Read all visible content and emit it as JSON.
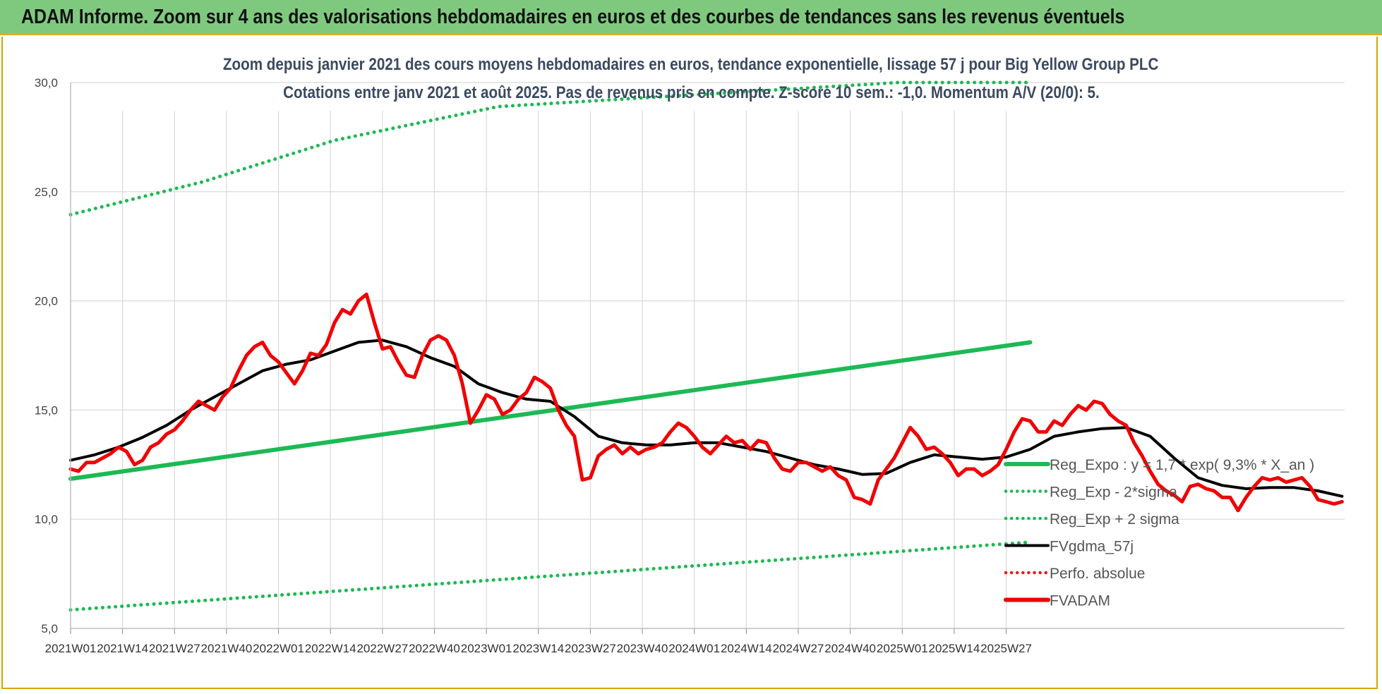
{
  "header": {
    "title": "ADAM Informe. Zoom sur 4 ans des valorisations hebdomadaires en euros et des courbes de tendances sans les revenus éventuels"
  },
  "chart_data": {
    "type": "line",
    "title_line1": "Zoom depuis janvier 2021 des cours moyens hebdomadaires en euros, tendance exponentielle, lissage 57 j pour Big Yellow Group PLC",
    "title_line2": "Cotations entre janv 2021 et août 2025.  Pas de revenus pris en compte. Z-score 10 sem.: -1,0. Momentum A/V (20/0): 5.",
    "ylim": [
      5,
      30
    ],
    "yticks": [
      "5,0",
      "10,0",
      "15,0",
      "20,0",
      "25,0",
      "30,0"
    ],
    "x_labels": [
      "2021W01",
      "2021W14",
      "2021W27",
      "2021W40",
      "2022W01",
      "2022W14",
      "2022W27",
      "2022W40",
      "2023W01",
      "2023W14",
      "2023W27",
      "2023W40",
      "2024W01",
      "2024W14",
      "2024W27",
      "2024W40",
      "2025W01",
      "2025W14",
      "2025W27"
    ],
    "n_weeks": 240,
    "legend_position": "right",
    "series": [
      {
        "name": "Reg_Expo : y = 1,7 * exp( 9,3% *  X_an )",
        "color": "#1db954",
        "style": "solid",
        "points": [
          [
            0,
            11.85
          ],
          [
            240,
            18.1
          ]
        ]
      },
      {
        "name": "Reg_Exp - 2*sigma",
        "color": "#1db954",
        "style": "dotted",
        "points": [
          [
            0,
            5.85
          ],
          [
            240,
            8.95
          ]
        ]
      },
      {
        "name": "Reg_Exp + 2 sigma",
        "color": "#1db954",
        "style": "dotted",
        "points": [
          [
            0,
            23.95
          ],
          [
            33,
            25.45
          ],
          [
            66,
            27.35
          ],
          [
            107,
            28.9
          ],
          [
            207,
            30.0
          ],
          [
            240,
            30.0
          ]
        ]
      },
      {
        "name": "FVgdma_57j",
        "color": "#000000",
        "style": "solid",
        "points": [
          [
            0,
            12.7
          ],
          [
            6,
            12.95
          ],
          [
            12,
            13.3
          ],
          [
            18,
            13.75
          ],
          [
            24,
            14.3
          ],
          [
            30,
            15.0
          ],
          [
            36,
            15.6
          ],
          [
            42,
            16.2
          ],
          [
            48,
            16.8
          ],
          [
            54,
            17.1
          ],
          [
            60,
            17.3
          ],
          [
            66,
            17.7
          ],
          [
            72,
            18.1
          ],
          [
            78,
            18.2
          ],
          [
            84,
            17.9
          ],
          [
            90,
            17.4
          ],
          [
            96,
            17.0
          ],
          [
            102,
            16.2
          ],
          [
            108,
            15.8
          ],
          [
            114,
            15.5
          ],
          [
            120,
            15.4
          ],
          [
            126,
            14.7
          ],
          [
            132,
            13.8
          ],
          [
            138,
            13.5
          ],
          [
            144,
            13.4
          ],
          [
            150,
            13.4
          ],
          [
            156,
            13.5
          ],
          [
            162,
            13.5
          ],
          [
            168,
            13.3
          ],
          [
            174,
            13.1
          ],
          [
            180,
            12.8
          ],
          [
            186,
            12.5
          ],
          [
            192,
            12.3
          ],
          [
            198,
            12.05
          ],
          [
            204,
            12.1
          ],
          [
            210,
            12.6
          ],
          [
            216,
            12.95
          ],
          [
            222,
            12.85
          ],
          [
            228,
            12.75
          ],
          [
            234,
            12.85
          ],
          [
            240,
            13.2
          ],
          [
            246,
            13.8
          ],
          [
            252,
            14.0
          ],
          [
            258,
            14.15
          ],
          [
            264,
            14.2
          ],
          [
            270,
            13.8
          ],
          [
            276,
            12.8
          ],
          [
            282,
            11.9
          ],
          [
            288,
            11.55
          ],
          [
            294,
            11.4
          ],
          [
            300,
            11.45
          ],
          [
            306,
            11.45
          ],
          [
            312,
            11.3
          ],
          [
            318,
            11.05
          ]
        ]
      },
      {
        "name": "Perfo. absolue",
        "color": "#e02020",
        "style": "dotted",
        "points": []
      },
      {
        "name": "FVADAM",
        "color": "#f00000",
        "style": "solid",
        "points": [
          [
            0,
            12.3
          ],
          [
            2,
            12.2
          ],
          [
            4,
            12.6
          ],
          [
            6,
            12.6
          ],
          [
            8,
            12.8
          ],
          [
            10,
            13.0
          ],
          [
            12,
            13.3
          ],
          [
            14,
            13.1
          ],
          [
            16,
            12.5
          ],
          [
            18,
            12.7
          ],
          [
            20,
            13.3
          ],
          [
            22,
            13.5
          ],
          [
            24,
            13.9
          ],
          [
            26,
            14.1
          ],
          [
            28,
            14.5
          ],
          [
            30,
            15.0
          ],
          [
            32,
            15.4
          ],
          [
            34,
            15.2
          ],
          [
            36,
            15.0
          ],
          [
            38,
            15.6
          ],
          [
            40,
            16.0
          ],
          [
            42,
            16.8
          ],
          [
            44,
            17.5
          ],
          [
            46,
            17.9
          ],
          [
            48,
            18.1
          ],
          [
            50,
            17.5
          ],
          [
            52,
            17.2
          ],
          [
            54,
            16.7
          ],
          [
            56,
            16.2
          ],
          [
            58,
            16.8
          ],
          [
            60,
            17.6
          ],
          [
            62,
            17.5
          ],
          [
            64,
            18.0
          ],
          [
            66,
            19.0
          ],
          [
            68,
            19.6
          ],
          [
            70,
            19.4
          ],
          [
            72,
            20.0
          ],
          [
            74,
            20.3
          ],
          [
            76,
            19.0
          ],
          [
            78,
            17.8
          ],
          [
            80,
            17.9
          ],
          [
            82,
            17.2
          ],
          [
            84,
            16.6
          ],
          [
            86,
            16.5
          ],
          [
            88,
            17.5
          ],
          [
            90,
            18.2
          ],
          [
            92,
            18.4
          ],
          [
            94,
            18.2
          ],
          [
            96,
            17.5
          ],
          [
            98,
            16.2
          ],
          [
            100,
            14.4
          ],
          [
            102,
            15.0
          ],
          [
            104,
            15.7
          ],
          [
            106,
            15.5
          ],
          [
            108,
            14.8
          ],
          [
            110,
            15.0
          ],
          [
            112,
            15.5
          ],
          [
            114,
            15.8
          ],
          [
            116,
            16.5
          ],
          [
            118,
            16.3
          ],
          [
            120,
            16.0
          ],
          [
            122,
            15.0
          ],
          [
            124,
            14.3
          ],
          [
            126,
            13.8
          ],
          [
            128,
            11.8
          ],
          [
            130,
            11.9
          ],
          [
            132,
            12.9
          ],
          [
            134,
            13.2
          ],
          [
            136,
            13.4
          ],
          [
            138,
            13.0
          ],
          [
            140,
            13.3
          ],
          [
            142,
            13.0
          ],
          [
            144,
            13.2
          ],
          [
            146,
            13.3
          ],
          [
            148,
            13.5
          ],
          [
            150,
            14.0
          ],
          [
            152,
            14.4
          ],
          [
            154,
            14.2
          ],
          [
            156,
            13.8
          ],
          [
            158,
            13.3
          ],
          [
            160,
            13.0
          ],
          [
            162,
            13.4
          ],
          [
            164,
            13.8
          ],
          [
            166,
            13.5
          ],
          [
            168,
            13.6
          ],
          [
            170,
            13.2
          ],
          [
            172,
            13.6
          ],
          [
            174,
            13.5
          ],
          [
            176,
            12.8
          ],
          [
            178,
            12.3
          ],
          [
            180,
            12.2
          ],
          [
            182,
            12.6
          ],
          [
            184,
            12.6
          ],
          [
            186,
            12.4
          ],
          [
            188,
            12.2
          ],
          [
            190,
            12.4
          ],
          [
            192,
            12.0
          ],
          [
            194,
            11.8
          ],
          [
            196,
            11.0
          ],
          [
            198,
            10.9
          ],
          [
            200,
            10.7
          ],
          [
            202,
            11.8
          ],
          [
            204,
            12.3
          ],
          [
            206,
            12.8
          ],
          [
            208,
            13.5
          ],
          [
            210,
            14.2
          ],
          [
            212,
            13.8
          ],
          [
            214,
            13.2
          ],
          [
            216,
            13.3
          ],
          [
            218,
            13.0
          ],
          [
            220,
            12.6
          ],
          [
            222,
            12.0
          ],
          [
            224,
            12.3
          ],
          [
            226,
            12.3
          ],
          [
            228,
            12.0
          ],
          [
            230,
            12.2
          ],
          [
            232,
            12.5
          ],
          [
            234,
            13.2
          ],
          [
            236,
            14.0
          ],
          [
            238,
            14.6
          ],
          [
            240,
            14.5
          ],
          [
            242,
            14.0
          ],
          [
            244,
            14.0
          ],
          [
            246,
            14.5
          ],
          [
            248,
            14.3
          ],
          [
            250,
            14.8
          ],
          [
            252,
            15.2
          ],
          [
            254,
            15.0
          ],
          [
            256,
            15.4
          ],
          [
            258,
            15.3
          ],
          [
            260,
            14.8
          ],
          [
            262,
            14.5
          ],
          [
            264,
            14.3
          ],
          [
            266,
            13.5
          ],
          [
            268,
            12.9
          ],
          [
            270,
            12.2
          ],
          [
            272,
            11.6
          ],
          [
            274,
            11.3
          ],
          [
            276,
            11.1
          ],
          [
            278,
            10.8
          ],
          [
            280,
            11.5
          ],
          [
            282,
            11.6
          ],
          [
            284,
            11.4
          ],
          [
            286,
            11.3
          ],
          [
            288,
            11.0
          ],
          [
            290,
            11.0
          ],
          [
            292,
            10.4
          ],
          [
            294,
            11.0
          ],
          [
            296,
            11.5
          ],
          [
            298,
            11.9
          ],
          [
            300,
            11.8
          ],
          [
            302,
            11.9
          ],
          [
            304,
            11.7
          ],
          [
            306,
            11.8
          ],
          [
            308,
            11.9
          ],
          [
            310,
            11.5
          ],
          [
            312,
            10.9
          ],
          [
            314,
            10.8
          ],
          [
            316,
            10.7
          ],
          [
            318,
            10.8
          ]
        ]
      }
    ]
  }
}
